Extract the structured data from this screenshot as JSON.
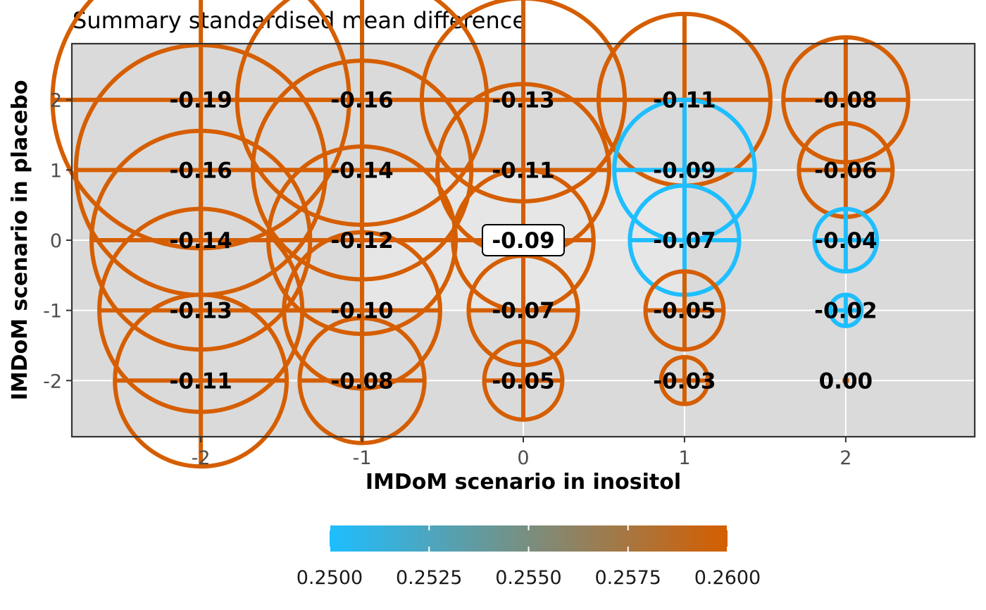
{
  "chart_data": {
    "type": "scatter",
    "title": "Summary standardised mean difference",
    "xlabel": "IMDoM scenario in inositol",
    "ylabel": "IMDoM scenario in placebo",
    "x_ticks": [
      "-2",
      "-1",
      "0",
      "1",
      "2"
    ],
    "y_ticks": [
      "2",
      "1",
      "0",
      "-1",
      "-2"
    ],
    "xlim": [
      -2.8,
      2.8
    ],
    "ylim": [
      -2.8,
      2.8
    ],
    "color_low": "#1ebeff",
    "color_high": "#d55e00",
    "highlight_index": 12,
    "points": [
      {
        "x": -2,
        "y": 2,
        "label": "-0.19",
        "smd": -0.19,
        "color_value": 0.26
      },
      {
        "x": -1,
        "y": 2,
        "label": "-0.16",
        "smd": -0.16,
        "color_value": 0.26
      },
      {
        "x": 0,
        "y": 2,
        "label": "-0.13",
        "smd": -0.13,
        "color_value": 0.26
      },
      {
        "x": 1,
        "y": 2,
        "label": "-0.11",
        "smd": -0.11,
        "color_value": 0.26
      },
      {
        "x": 2,
        "y": 2,
        "label": "-0.08",
        "smd": -0.08,
        "color_value": 0.26
      },
      {
        "x": -2,
        "y": 1,
        "label": "-0.16",
        "smd": -0.16,
        "color_value": 0.26
      },
      {
        "x": -1,
        "y": 1,
        "label": "-0.14",
        "smd": -0.14,
        "color_value": 0.26
      },
      {
        "x": 0,
        "y": 1,
        "label": "-0.11",
        "smd": -0.11,
        "color_value": 0.26
      },
      {
        "x": 1,
        "y": 1,
        "label": "-0.09",
        "smd": -0.09,
        "color_value": 0.25
      },
      {
        "x": 2,
        "y": 1,
        "label": "-0.06",
        "smd": -0.06,
        "color_value": 0.26
      },
      {
        "x": -2,
        "y": 0,
        "label": "-0.14",
        "smd": -0.14,
        "color_value": 0.26
      },
      {
        "x": -1,
        "y": 0,
        "label": "-0.12",
        "smd": -0.12,
        "color_value": 0.26
      },
      {
        "x": 0,
        "y": 0,
        "label": "-0.09",
        "smd": -0.09,
        "color_value": 0.26
      },
      {
        "x": 1,
        "y": 0,
        "label": "-0.07",
        "smd": -0.07,
        "color_value": 0.25
      },
      {
        "x": 2,
        "y": 0,
        "label": "-0.04",
        "smd": -0.04,
        "color_value": 0.25
      },
      {
        "x": -2,
        "y": -1,
        "label": "-0.13",
        "smd": -0.13,
        "color_value": 0.26
      },
      {
        "x": -1,
        "y": -1,
        "label": "-0.10",
        "smd": -0.1,
        "color_value": 0.26
      },
      {
        "x": 0,
        "y": -1,
        "label": "-0.07",
        "smd": -0.07,
        "color_value": 0.26
      },
      {
        "x": 1,
        "y": -1,
        "label": "-0.05",
        "smd": -0.05,
        "color_value": 0.26
      },
      {
        "x": 2,
        "y": -1,
        "label": "-0.02",
        "smd": -0.02,
        "color_value": 0.25
      },
      {
        "x": -2,
        "y": -2,
        "label": "-0.11",
        "smd": -0.11,
        "color_value": 0.26
      },
      {
        "x": -1,
        "y": -2,
        "label": "-0.08",
        "smd": -0.08,
        "color_value": 0.26
      },
      {
        "x": 0,
        "y": -2,
        "label": "-0.05",
        "smd": -0.05,
        "color_value": 0.26
      },
      {
        "x": 1,
        "y": -2,
        "label": "-0.03",
        "smd": -0.03,
        "color_value": 0.26
      },
      {
        "x": 2,
        "y": -2,
        "label": "0.00",
        "smd": 0.0,
        "color_value": 0.26
      }
    ],
    "background_bands": [
      {
        "level": 2,
        "fill": "#dadada"
      },
      {
        "level": 1,
        "fill": "#e6e6e6"
      },
      {
        "level": 0,
        "fill": "#fafafa"
      }
    ],
    "legend": {
      "position": "bottom",
      "min": 0.25,
      "max": 0.26,
      "ticks": [
        "0.2500",
        "0.2525",
        "0.2550",
        "0.2575",
        "0.2600"
      ],
      "tick_values": [
        0.25,
        0.2525,
        0.255,
        0.2575,
        0.26
      ]
    }
  }
}
